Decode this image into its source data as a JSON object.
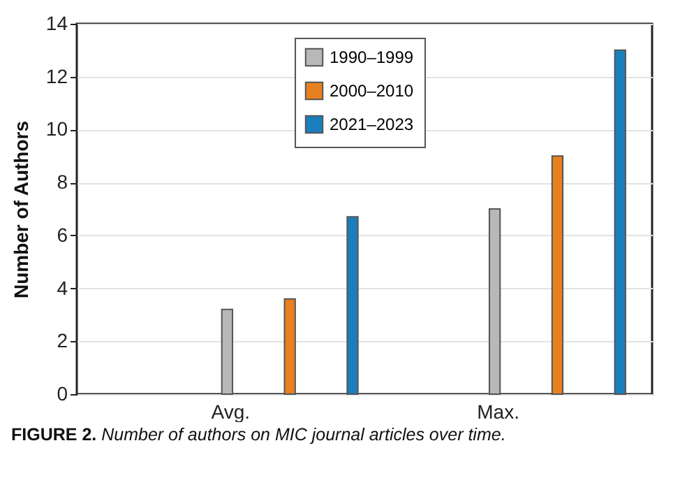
{
  "chart_data": {
    "type": "bar",
    "ylabel": "Number of Authors",
    "categories": [
      "Avg.",
      "Max."
    ],
    "series": [
      {
        "name": "1990–1999",
        "color": "#b8b8b8",
        "values": [
          3.2,
          7
        ]
      },
      {
        "name": "2000–2010",
        "color": "#e8801f",
        "values": [
          3.6,
          9
        ]
      },
      {
        "name": "2021–2023",
        "color": "#1a7fbd",
        "values": [
          6.7,
          13
        ]
      }
    ],
    "ylim": [
      0,
      14
    ],
    "yticks": [
      0,
      2,
      4,
      6,
      8,
      10,
      12,
      14
    ],
    "grid": "y",
    "legend": "top",
    "annotations": [
      "FIGURE 2. Number of authors on MIC journal articles over time."
    ]
  }
}
